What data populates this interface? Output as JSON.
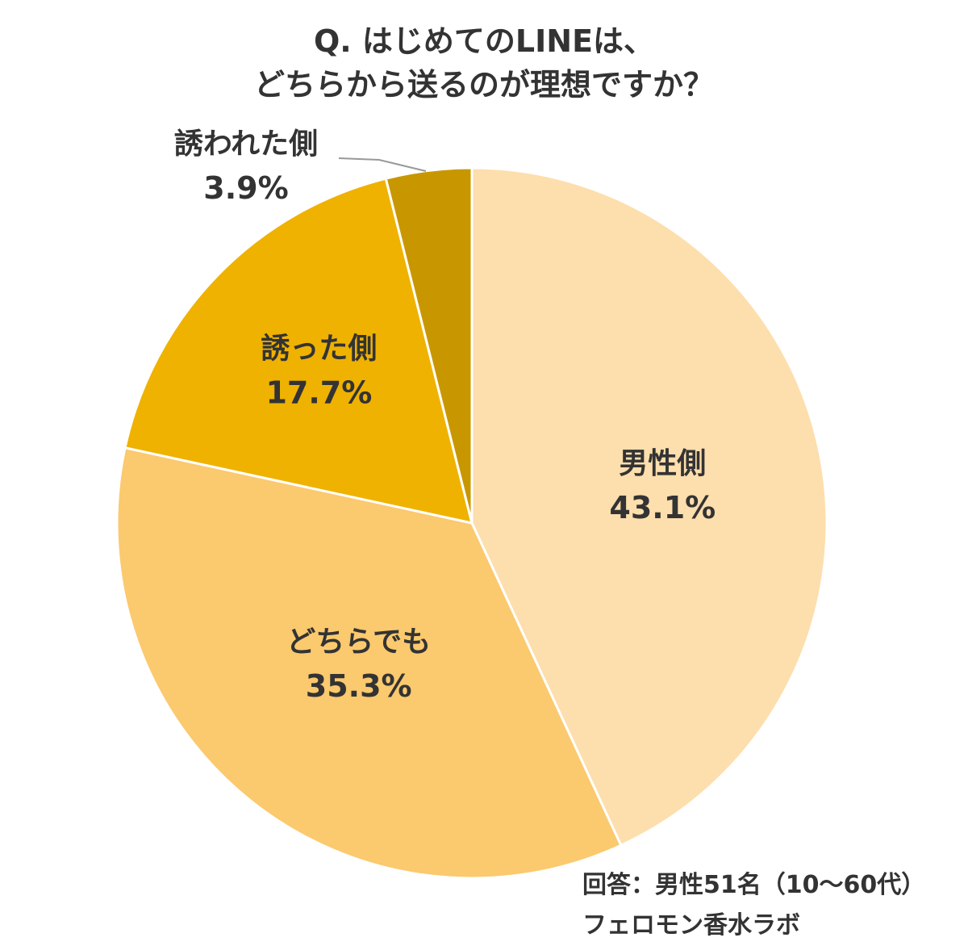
{
  "chart_data": {
    "type": "pie",
    "title_lines": [
      "Q. はじめてのLINEは、",
      "どちらから送るのが理想ですか？"
    ],
    "slices": [
      {
        "label": "男性側",
        "value": 43.1,
        "value_label": "43.1%",
        "color": "#FDDEAD"
      },
      {
        "label": "どちらでも",
        "value": 35.3,
        "value_label": "35.3%",
        "color": "#FBC96E"
      },
      {
        "label": "誘った側",
        "value": 17.7,
        "value_label": "17.7%",
        "color": "#EFB200"
      },
      {
        "label": "誘われた側",
        "value": 3.9,
        "value_label": "3.9%",
        "color": "#C89700"
      }
    ],
    "start_angle": "12 o'clock",
    "direction": "clockwise",
    "slice_border_color": "#ffffff",
    "callout_line_color": "#999999"
  },
  "source_lines": [
    "回答：男性51名（10〜60代）",
    "フェロモン香水ラボ"
  ]
}
